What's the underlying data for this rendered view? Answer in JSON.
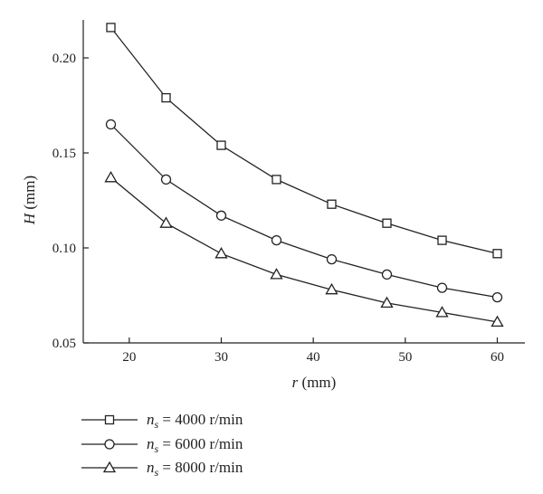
{
  "chart_data": {
    "type": "line",
    "xlabel_var": "r",
    "xlabel_unit": " (mm)",
    "ylabel_var": "H",
    "ylabel_unit": " (mm)",
    "xlim": [
      15,
      63
    ],
    "ylim": [
      0.05,
      0.22
    ],
    "xticks": [
      20,
      30,
      40,
      50,
      60
    ],
    "yticks": [
      0.05,
      0.1,
      0.15,
      0.2
    ],
    "ytick_labels": [
      "0.05",
      "0.10",
      "0.15",
      "0.20"
    ],
    "grid": false,
    "legend_position": "below",
    "x": [
      18,
      24,
      30,
      36,
      42,
      48,
      54,
      60
    ],
    "series": [
      {
        "name_var": "n",
        "name_sub": "s",
        "name_rest": " = 4000 r/min",
        "marker": "square",
        "values": [
          0.216,
          0.179,
          0.154,
          0.136,
          0.123,
          0.113,
          0.104,
          0.097
        ]
      },
      {
        "name_var": "n",
        "name_sub": "s",
        "name_rest": " = 6000 r/min",
        "marker": "circle",
        "values": [
          0.165,
          0.136,
          0.117,
          0.104,
          0.094,
          0.086,
          0.079,
          0.074
        ]
      },
      {
        "name_var": "n",
        "name_sub": "s",
        "name_rest": " = 8000 r/min",
        "marker": "triangle",
        "values": [
          0.137,
          0.113,
          0.097,
          0.086,
          0.078,
          0.071,
          0.066,
          0.061
        ]
      }
    ]
  }
}
